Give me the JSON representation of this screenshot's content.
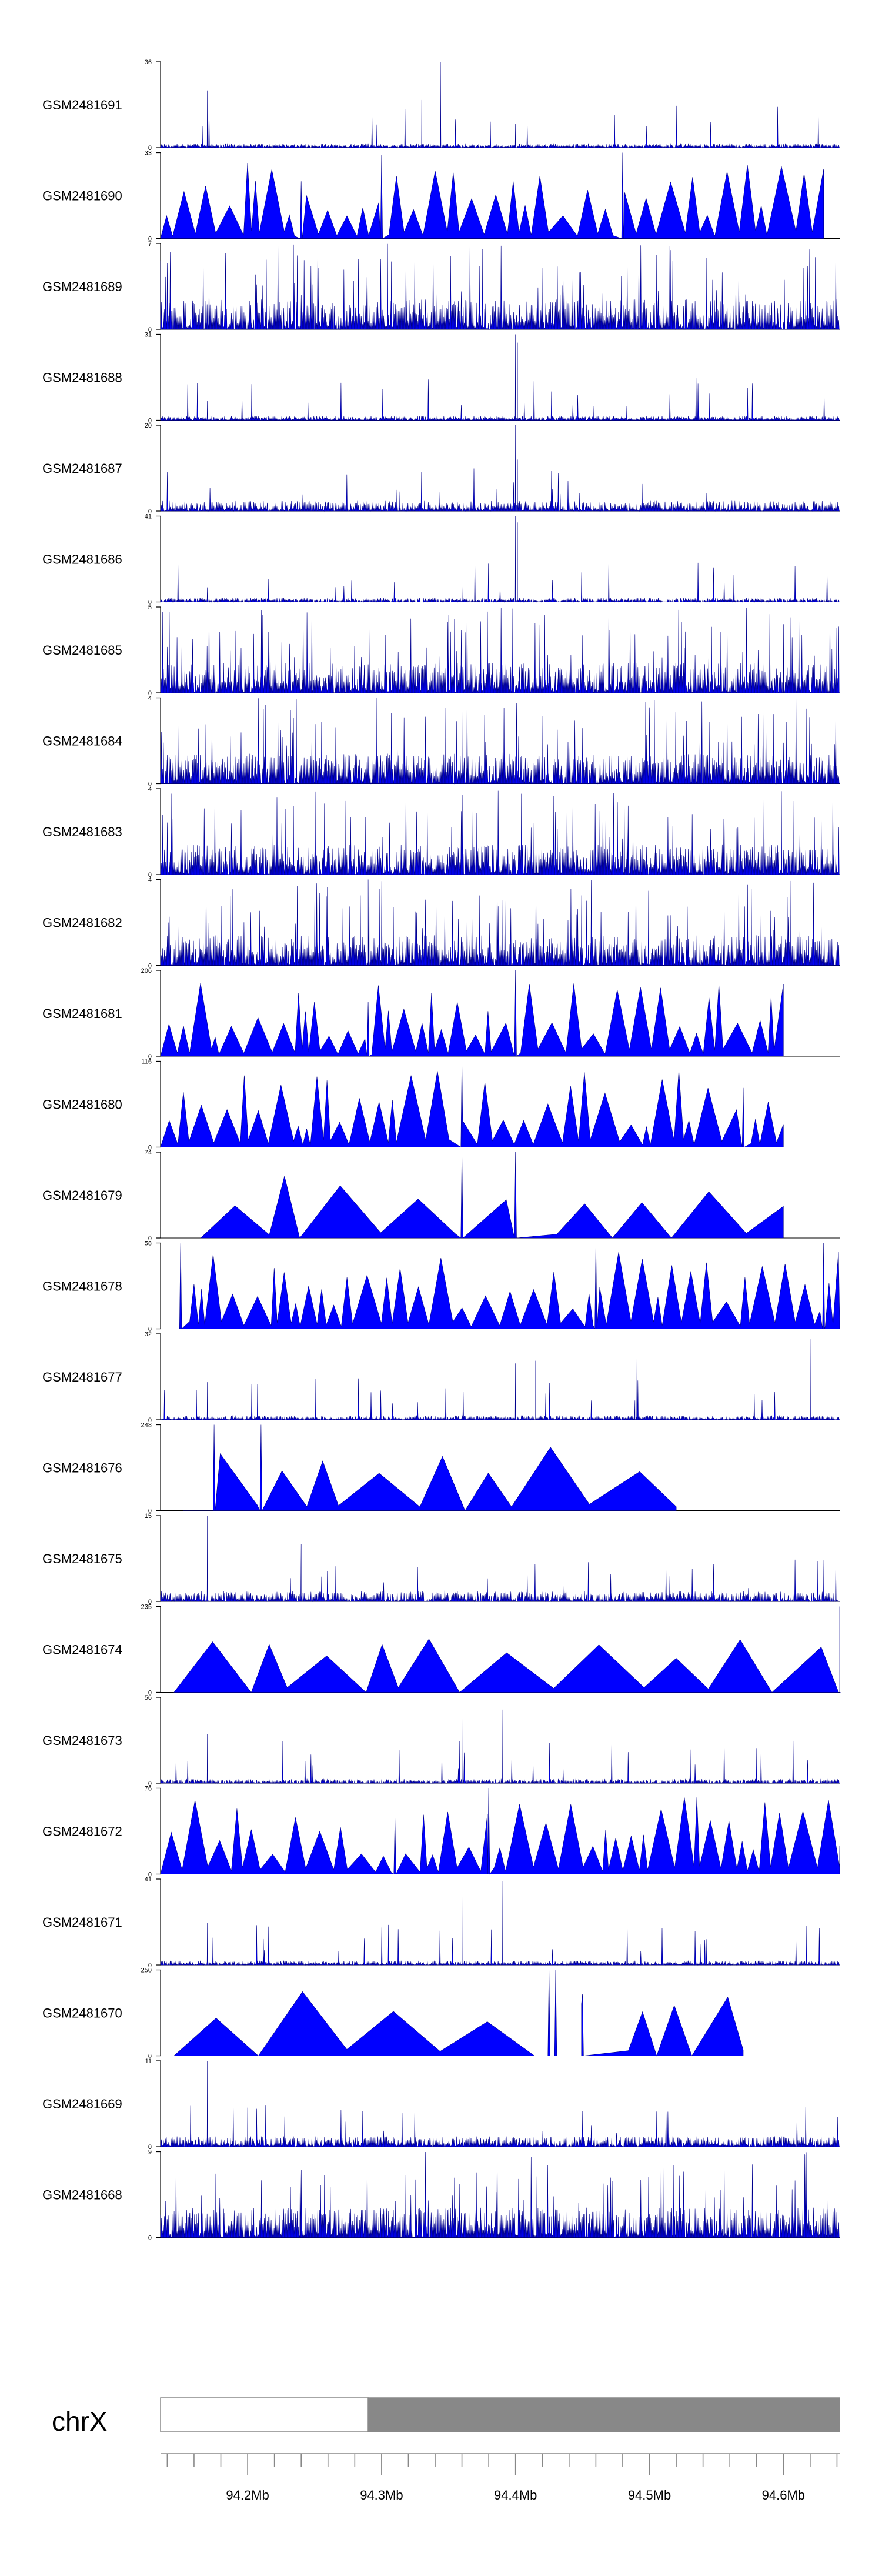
{
  "chart_data": {
    "type": "area",
    "title": "",
    "chromosome": "chrX",
    "xrange_mb": [
      94.135,
      94.642
    ],
    "axis_ticks": [
      {
        "value": 94.2,
        "label": "94.2Mb"
      },
      {
        "value": 94.3,
        "label": "94.3Mb"
      },
      {
        "value": 94.4,
        "label": "94.4Mb"
      },
      {
        "value": 94.5,
        "label": "94.5Mb"
      },
      {
        "value": 94.6,
        "label": "94.6Mb"
      }
    ],
    "ideogram": {
      "segments": [
        {
          "from": 94.135,
          "to": 94.29,
          "color": "#ffffff"
        },
        {
          "from": 94.29,
          "to": 94.642,
          "color": "#888888"
        }
      ]
    },
    "colors": {
      "fill": "#0000ff",
      "stroke": "#00008b"
    },
    "tracks": [
      {
        "name": "GSM2481691",
        "ylim": [
          0,
          36
        ],
        "style": "spiky",
        "seed": 1,
        "peaks": [
          [
            94.17,
            24
          ],
          [
            94.33,
            20
          ],
          [
            94.344,
            36
          ],
          [
            94.4,
            10
          ]
        ]
      },
      {
        "name": "GSM2481690",
        "ylim": [
          0,
          33
        ],
        "style": "triangles",
        "seed": 2,
        "x_end": 94.63,
        "peaks": [
          [
            94.24,
            22
          ],
          [
            94.3,
            32
          ],
          [
            94.48,
            33
          ]
        ]
      },
      {
        "name": "GSM2481689",
        "ylim": [
          0,
          7
        ],
        "style": "dense",
        "seed": 3,
        "peaks": []
      },
      {
        "name": "GSM2481688",
        "ylim": [
          0,
          31
        ],
        "style": "spiky",
        "seed": 4,
        "peaks": [
          [
            94.17,
            7
          ],
          [
            94.4,
            31
          ],
          [
            94.4015,
            28
          ]
        ]
      },
      {
        "name": "GSM2481687",
        "ylim": [
          0,
          20
        ],
        "style": "spiky_noisy",
        "seed": 5,
        "peaks": [
          [
            94.4,
            20
          ],
          [
            94.4015,
            12
          ]
        ]
      },
      {
        "name": "GSM2481686",
        "ylim": [
          0,
          41
        ],
        "style": "spiky",
        "seed": 6,
        "peaks": [
          [
            94.17,
            7
          ],
          [
            94.36,
            9
          ],
          [
            94.4,
            41
          ],
          [
            94.4015,
            38
          ]
        ]
      },
      {
        "name": "GSM2481685",
        "ylim": [
          0,
          5
        ],
        "style": "dense",
        "seed": 7,
        "peaks": [
          [
            94.6,
            4
          ]
        ]
      },
      {
        "name": "GSM2481684",
        "ylim": [
          0,
          4
        ],
        "style": "dense",
        "seed": 8,
        "peaks": [
          [
            94.36,
            4
          ]
        ]
      },
      {
        "name": "GSM2481683",
        "ylim": [
          0,
          4
        ],
        "style": "dense",
        "seed": 9,
        "peaks": []
      },
      {
        "name": "GSM2481682",
        "ylim": [
          0,
          4
        ],
        "style": "dense",
        "seed": 10,
        "peaks": [
          [
            94.29,
            4
          ]
        ]
      },
      {
        "name": "GSM2481681",
        "ylim": [
          0,
          206
        ],
        "style": "triangles",
        "seed": 11,
        "x_end": 94.6,
        "peaks": [
          [
            94.29,
            130
          ],
          [
            94.4,
            206
          ]
        ]
      },
      {
        "name": "GSM2481680",
        "ylim": [
          0,
          116
        ],
        "style": "triangles",
        "seed": 12,
        "x_end": 94.6,
        "peaks": [
          [
            94.36,
            116
          ],
          [
            94.57,
            80
          ]
        ]
      },
      {
        "name": "GSM2481679",
        "ylim": [
          0,
          74
        ],
        "style": "triangles_sparse",
        "seed": 13,
        "x_start": 94.165,
        "x_end": 94.6,
        "peaks": [
          [
            94.36,
            74
          ],
          [
            94.4,
            74
          ]
        ]
      },
      {
        "name": "GSM2481678",
        "ylim": [
          0,
          58
        ],
        "style": "triangles",
        "seed": 14,
        "x_start": 94.143,
        "peaks": [
          [
            94.15,
            58
          ],
          [
            94.46,
            58
          ],
          [
            94.63,
            58
          ]
        ]
      },
      {
        "name": "GSM2481677",
        "ylim": [
          0,
          32
        ],
        "style": "spiky",
        "seed": 15,
        "peaks": [
          [
            94.17,
            14
          ],
          [
            94.4,
            21
          ],
          [
            94.415,
            22
          ],
          [
            94.49,
            23
          ],
          [
            94.62,
            30
          ]
        ]
      },
      {
        "name": "GSM2481676",
        "ylim": [
          0,
          248
        ],
        "style": "triangles_sparse",
        "seed": 16,
        "x_start": 94.152,
        "x_end": 94.52,
        "peaks": [
          [
            94.175,
            248
          ],
          [
            94.21,
            248
          ]
        ]
      },
      {
        "name": "GSM2481675",
        "ylim": [
          0,
          15
        ],
        "style": "spiky_noisy",
        "seed": 17,
        "peaks": [
          [
            94.17,
            15
          ],
          [
            94.24,
            10
          ]
        ]
      },
      {
        "name": "GSM2481674",
        "ylim": [
          0,
          235
        ],
        "style": "triangles_sparse",
        "seed": 18,
        "x_start": 94.145,
        "peaks": [
          [
            94.642,
            235
          ]
        ]
      },
      {
        "name": "GSM2481673",
        "ylim": [
          0,
          56
        ],
        "style": "spiky",
        "seed": 19,
        "peaks": [
          [
            94.17,
            32
          ],
          [
            94.36,
            53
          ],
          [
            94.39,
            48
          ]
        ]
      },
      {
        "name": "GSM2481672",
        "ylim": [
          0,
          76
        ],
        "style": "triangles",
        "seed": 20,
        "peaks": [
          [
            94.38,
            76
          ],
          [
            94.31,
            50
          ]
        ]
      },
      {
        "name": "GSM2481671",
        "ylim": [
          0,
          41
        ],
        "style": "spiky",
        "seed": 21,
        "peaks": [
          [
            94.17,
            20
          ],
          [
            94.36,
            41
          ],
          [
            94.39,
            40
          ]
        ]
      },
      {
        "name": "GSM2481670",
        "ylim": [
          0,
          250
        ],
        "style": "triangles_sparse",
        "seed": 22,
        "x_start": 94.145,
        "x_end": 94.57,
        "peaks": [
          [
            94.425,
            250
          ],
          [
            94.43,
            250
          ],
          [
            94.45,
            180
          ]
        ]
      },
      {
        "name": "GSM2481669",
        "ylim": [
          0,
          11
        ],
        "style": "spiky_noisy",
        "seed": 23,
        "peaks": [
          [
            94.17,
            11
          ],
          [
            94.2,
            5
          ]
        ]
      },
      {
        "name": "GSM2481668",
        "ylim": [
          0,
          9
        ],
        "style": "dense",
        "seed": 24,
        "peaks": []
      }
    ]
  }
}
